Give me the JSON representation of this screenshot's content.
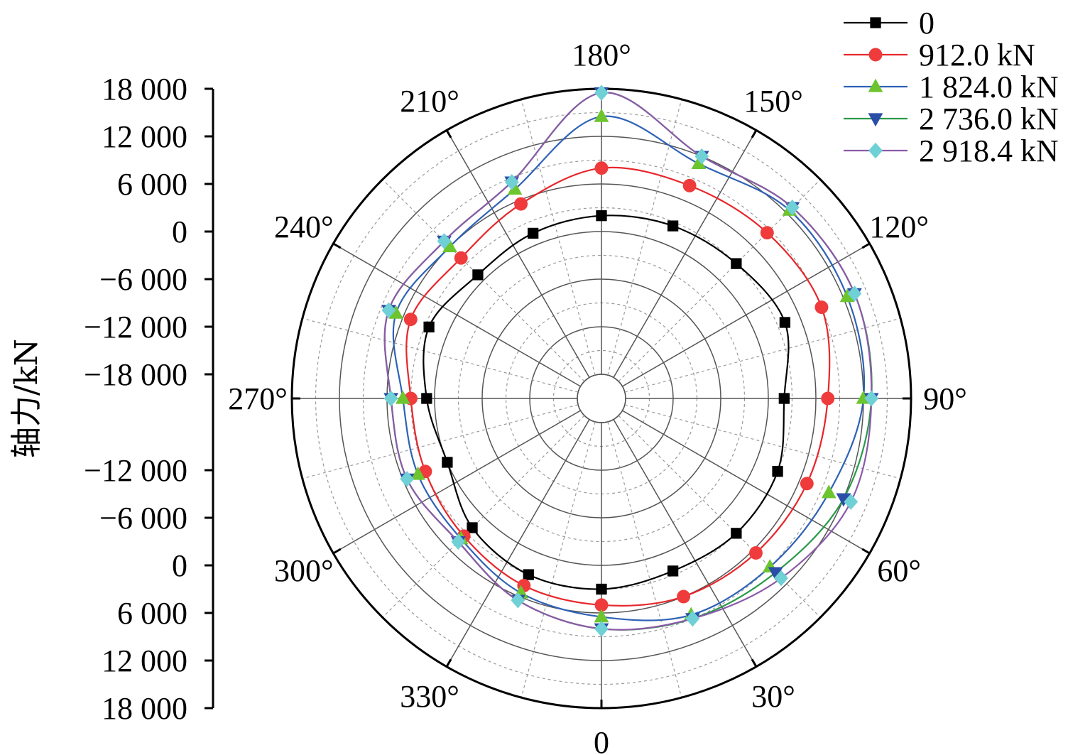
{
  "chart_data": {
    "type": "polar-line",
    "title": "",
    "ylabel": "轴力/kN",
    "radial_axis": {
      "range": [
        -18000,
        18000
      ],
      "tick_values": [
        -18000,
        -12000,
        -6000,
        0,
        6000,
        12000,
        18000
      ],
      "tick_labels_upper": [
        "18 000",
        "12 000",
        "6 000",
        "0",
        "−6 000",
        "−12 000",
        "−18 000"
      ],
      "tick_labels_lower": [
        "−12 000",
        "−6 000",
        "0",
        "6 000",
        "12 000",
        "18 000"
      ]
    },
    "angle_axis": {
      "zero_direction": "bottom",
      "rotation": "counterclockwise",
      "labels": [
        {
          "angle": 0,
          "text": "0"
        },
        {
          "angle": 30,
          "text": "30°"
        },
        {
          "angle": 60,
          "text": "60°"
        },
        {
          "angle": 90,
          "text": "90°"
        },
        {
          "angle": 120,
          "text": "120°"
        },
        {
          "angle": 150,
          "text": "150°"
        },
        {
          "angle": 180,
          "text": "180°"
        },
        {
          "angle": 210,
          "text": "210°"
        },
        {
          "angle": 240,
          "text": "240°"
        },
        {
          "angle": 270,
          "text": "270°"
        },
        {
          "angle": 300,
          "text": "300°"
        },
        {
          "angle": 330,
          "text": "330°"
        }
      ]
    },
    "grid": true,
    "legend": {
      "position": "top-right"
    },
    "angles": [
      0,
      22.5,
      45,
      67.5,
      90,
      112.5,
      135,
      157.5,
      180,
      202.5,
      225,
      247.5,
      270,
      292.5,
      315,
      337.5
    ],
    "series": [
      {
        "name": "0",
        "color": "#000000",
        "marker": "square",
        "values": [
          3000,
          2500,
          3000,
          3000,
          2000,
          4000,
          3000,
          2500,
          2000,
          1500,
          1000,
          2500,
          1000,
          0,
          2000,
          3000
        ]
      },
      {
        "name": "912.0 kN",
        "color": "#e8262a",
        "marker": "circle",
        "values": [
          5000,
          6000,
          6500,
          7000,
          7500,
          9000,
          8500,
          8000,
          8000,
          5500,
          4000,
          5000,
          3000,
          3000,
          3500,
          4500
        ]
      },
      {
        "name": "1 824.0 kN",
        "color": "#2e62b6",
        "marker": "triangle-up",
        "values": [
          6500,
          8500,
          9000,
          10000,
          12000,
          12500,
          12500,
          11000,
          14500,
          7500,
          6000,
          7000,
          4000,
          4000,
          4000,
          5500
        ]
      },
      {
        "name": "2 736.0 kN",
        "color": "#2a9a4a",
        "marker": "triangle-down",
        "values": [
          8000,
          9000,
          10000,
          12000,
          13000,
          13500,
          13000,
          12000,
          17500,
          8500,
          7000,
          8000,
          5500,
          5500,
          4500,
          6500
        ]
      },
      {
        "name": "2 918.4 kN",
        "color": "#8b5aa8",
        "marker": "diamond",
        "values": [
          8000,
          9000,
          11000,
          13000,
          13000,
          13500,
          13000,
          12000,
          17500,
          8500,
          7000,
          8000,
          5500,
          5500,
          4500,
          6500
        ]
      }
    ],
    "marker_fill": {
      "0": "#000000",
      "912.0 kN": "#ef3b3b",
      "1 824.0 kN": "#6cc52f",
      "2 736.0 kN": "#2a4ea8",
      "2 918.4 kN": "#6fd0d6"
    }
  }
}
